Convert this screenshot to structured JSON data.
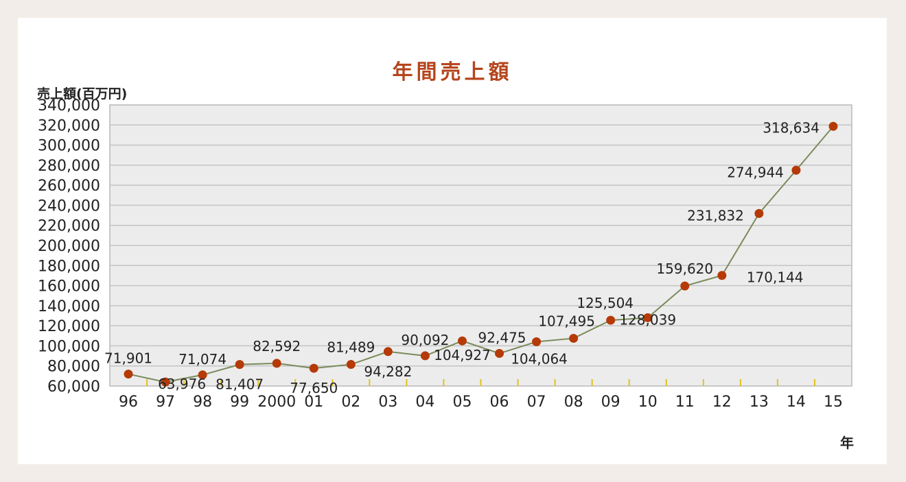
{
  "chart_data": {
    "type": "line",
    "title": "年間売上額",
    "ylabel": "売上額(百万円)",
    "xunit": "年",
    "ylim": [
      60000,
      340000
    ],
    "yticks": [
      60000,
      80000,
      100000,
      120000,
      140000,
      160000,
      180000,
      200000,
      220000,
      240000,
      260000,
      280000,
      300000,
      320000,
      340000
    ],
    "ytick_labels": [
      "60,000",
      "80,000",
      "100,000",
      "120,000",
      "140,000",
      "160,000",
      "180,000",
      "200,000",
      "220,000",
      "240,000",
      "260,000",
      "280,000",
      "300,000",
      "320,000",
      "340,000"
    ],
    "x": [
      "96",
      "97",
      "98",
      "99",
      "2000",
      "01",
      "02",
      "03",
      "04",
      "05",
      "06",
      "07",
      "08",
      "09",
      "10",
      "11",
      "12",
      "13",
      "14",
      "15"
    ],
    "series": [
      {
        "values": [
          71901,
          63976,
          71074,
          81407,
          82592,
          77650,
          81489,
          94282,
          90092,
          104927,
          92475,
          104064,
          107495,
          125504,
          128039,
          159620,
          170144,
          231832,
          274944,
          318634
        ],
        "value_labels": [
          "71,901",
          "63,976",
          "71,074",
          "81,407",
          "82,592",
          "77,650",
          "81,489",
          "94,282",
          "90,092",
          "104,927",
          "92,475",
          "104,064",
          "107,495",
          "125,504",
          "128,039",
          "159,620",
          "170,144",
          "231,832",
          "274,944",
          "318,634"
        ]
      }
    ],
    "grid": true,
    "colors": {
      "line": "#7a8a5a",
      "marker": "#b53a08",
      "title": "#b5451d",
      "plot_bg": "#ececec",
      "grid": "#c4c4c4",
      "x_tick_marks": "#e2c21a"
    }
  }
}
